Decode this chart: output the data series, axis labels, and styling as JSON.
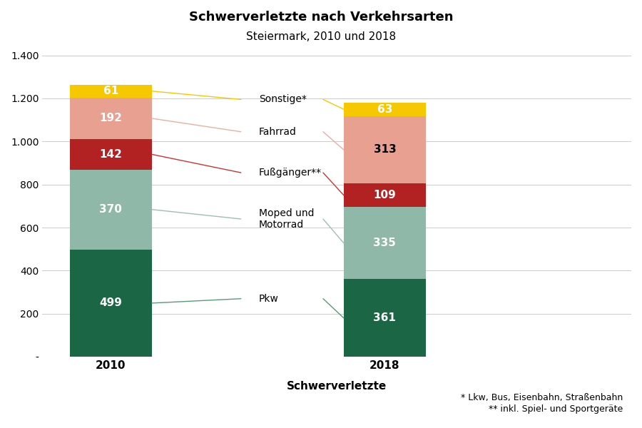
{
  "title": "Schwerverletzte nach Verkehrsarten",
  "subtitle": "Steiermark, 2010 und 2018",
  "xlabel": "Schwerverletzte",
  "years": [
    "2010",
    "2018"
  ],
  "values_2010": [
    499,
    370,
    142,
    192,
    61
  ],
  "values_2018": [
    361,
    335,
    109,
    313,
    63
  ],
  "colors": [
    "#1a6645",
    "#8fb8a8",
    "#b22222",
    "#e8a090",
    "#f5c800"
  ],
  "line_colors": [
    "#5a9a78",
    "#9fbfaf",
    "#cc3333",
    "#e8b0a0",
    "#f5c800"
  ],
  "footnote1": "* Lkw, Bus, Eisenbahn, Straßenbahn",
  "footnote2": "** inkl. Spiel- und Sportgeräte",
  "ylim": [
    0,
    1400
  ],
  "yticks": [
    0,
    200,
    400,
    600,
    800,
    1000,
    1200,
    1400
  ],
  "ytick_labels": [
    "-",
    "200",
    "400",
    "600",
    "800",
    "1.000",
    "1.200",
    "1.400"
  ],
  "background_color": "#ffffff",
  "grid_color": "#cccccc"
}
